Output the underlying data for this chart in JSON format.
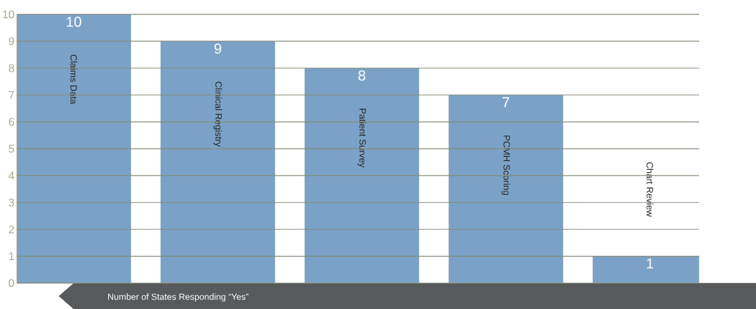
{
  "chart_data": {
    "type": "bar",
    "xlabel": "Number of States Responding “Yes”",
    "categories": [
      "Claims Data",
      "Clinical Registry",
      "Patient Survey",
      "PCMH Scoring",
      "Chart Review"
    ],
    "values": [
      10,
      9,
      8,
      7,
      1
    ],
    "color": "#7ba2c6",
    "ylim": [
      0,
      10
    ],
    "yticks": [
      0,
      1,
      2,
      3,
      4,
      5,
      6,
      7,
      8,
      9,
      10
    ],
    "grid": "y",
    "data_labels": true
  }
}
